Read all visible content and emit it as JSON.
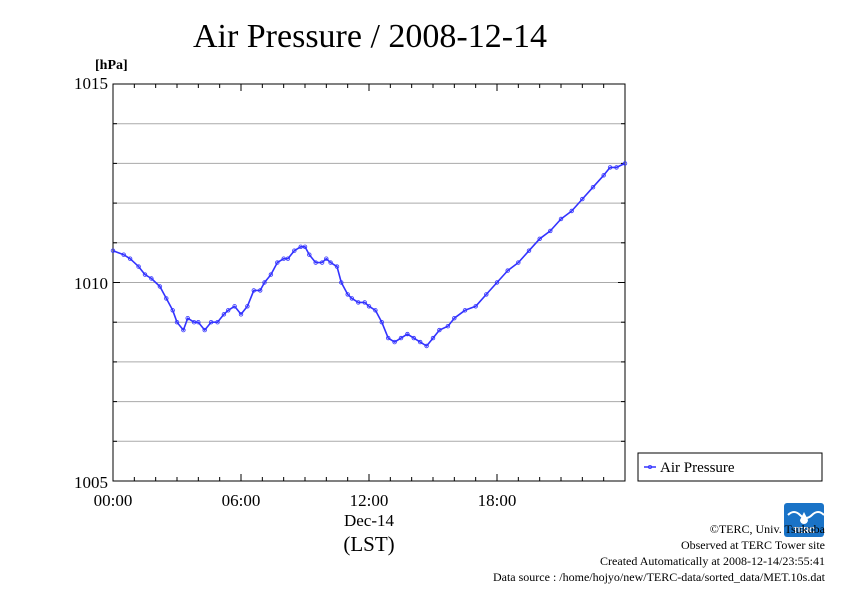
{
  "chart_data": {
    "type": "line",
    "title": "Air Pressure / 2008-12-14",
    "ylabel": "[hPa]",
    "xlabel_date": "Dec-14",
    "xlabel_tz": "(LST)",
    "ylim": [
      1005,
      1015
    ],
    "xlim_hours": [
      0,
      24
    ],
    "y_ticks": [
      "1005",
      "1010",
      "1015"
    ],
    "x_ticks": [
      "00:00",
      "06:00",
      "12:00",
      "18:00"
    ],
    "grid": true,
    "legend_position": "right",
    "series": [
      {
        "name": "Air Pressure",
        "color": "#3333ff",
        "x": [
          0,
          0.5,
          0.8,
          1.2,
          1.5,
          1.8,
          2.2,
          2.5,
          2.8,
          3.0,
          3.3,
          3.5,
          3.8,
          4.0,
          4.3,
          4.6,
          4.9,
          5.2,
          5.4,
          5.7,
          6.0,
          6.3,
          6.6,
          6.9,
          7.1,
          7.4,
          7.7,
          8.0,
          8.2,
          8.5,
          8.8,
          9.0,
          9.2,
          9.5,
          9.8,
          10.0,
          10.2,
          10.5,
          10.7,
          11.0,
          11.2,
          11.5,
          11.8,
          12.0,
          12.3,
          12.6,
          12.9,
          13.2,
          13.5,
          13.8,
          14.1,
          14.4,
          14.7,
          15.0,
          15.3,
          15.7,
          16.0,
          16.5,
          17.0,
          17.5,
          18.0,
          18.5,
          19.0,
          19.5,
          20.0,
          20.5,
          21.0,
          21.5,
          22.0,
          22.5,
          23.0,
          23.3,
          23.6,
          24.0
        ],
        "y": [
          1010.8,
          1010.7,
          1010.6,
          1010.4,
          1010.2,
          1010.1,
          1009.9,
          1009.6,
          1009.3,
          1009.0,
          1008.8,
          1009.1,
          1009.0,
          1009.0,
          1008.8,
          1009.0,
          1009.0,
          1009.2,
          1009.3,
          1009.4,
          1009.2,
          1009.4,
          1009.8,
          1009.8,
          1010.0,
          1010.2,
          1010.5,
          1010.6,
          1010.6,
          1010.8,
          1010.9,
          1010.9,
          1010.7,
          1010.5,
          1010.5,
          1010.6,
          1010.5,
          1010.4,
          1010.0,
          1009.7,
          1009.6,
          1009.5,
          1009.5,
          1009.4,
          1009.3,
          1009.0,
          1008.6,
          1008.5,
          1008.6,
          1008.7,
          1008.6,
          1008.5,
          1008.4,
          1008.6,
          1008.8,
          1008.9,
          1009.1,
          1009.3,
          1009.4,
          1009.7,
          1010.0,
          1010.3,
          1010.5,
          1010.8,
          1011.1,
          1011.3,
          1011.6,
          1011.8,
          1012.1,
          1012.4,
          1012.7,
          1012.9,
          1012.9,
          1013.0
        ]
      }
    ]
  },
  "credits": {
    "copyright": "©TERC, Univ. Tsukuba",
    "observed": "Observed at TERC Tower site",
    "created": "Created Automatically at 2008-12-14/23:55:41",
    "source": "Data source : /home/hojyo/new/TERC-data/sorted_data/MET.10s.dat",
    "logo_text": "TERC"
  }
}
